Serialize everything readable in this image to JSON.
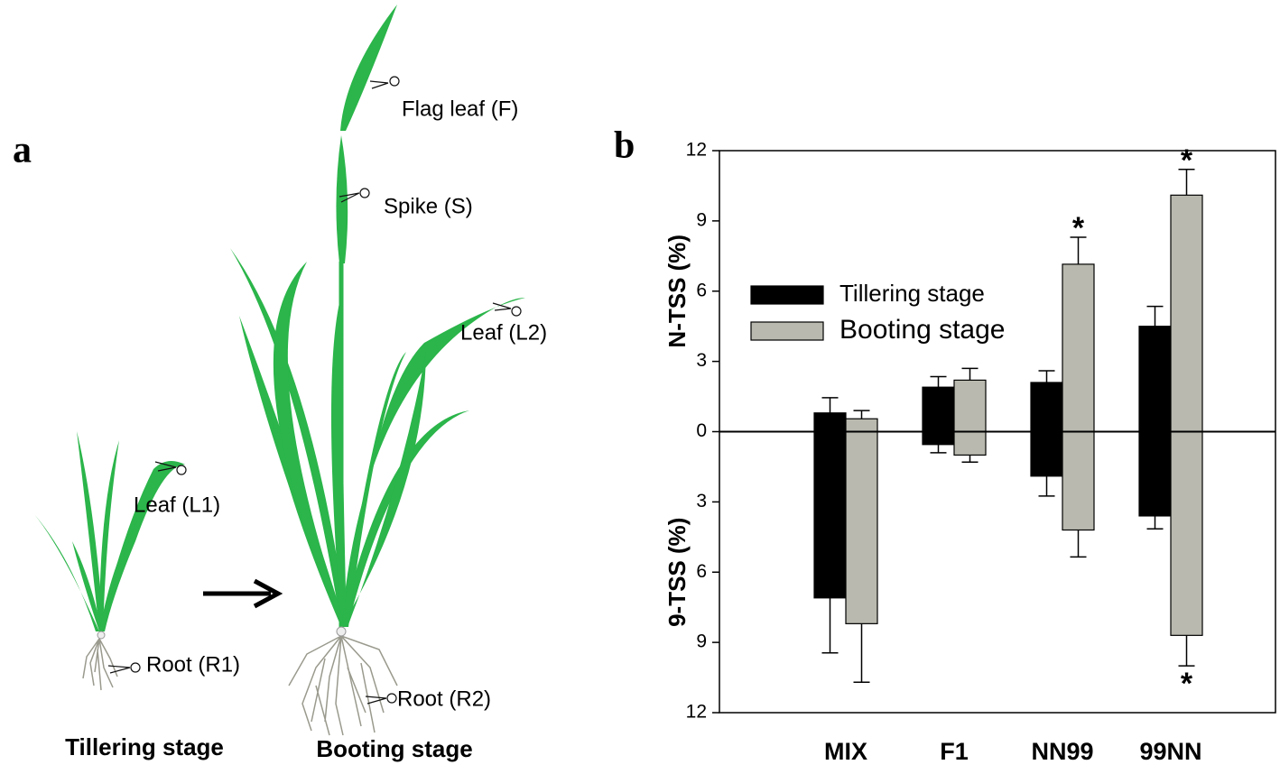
{
  "illustration": {
    "panel": "a",
    "labels": [
      "Flag leaf (F)",
      "Spike (S)",
      "Leaf (L2)",
      "Leaf (L1)",
      "Root (R1)",
      "Root (R2)"
    ],
    "stages": [
      "Tillering stage",
      "Booting stage"
    ]
  },
  "chart_data": {
    "type": "bar",
    "panel": "b",
    "ylabel_top": "N-TSS (%)",
    "ylabel_bottom": "9-TSS (%)",
    "categories": [
      "MIX",
      "F1",
      "NN99",
      "99NN"
    ],
    "ylim": [
      -12,
      12
    ],
    "yticks": [
      12,
      9,
      6,
      3,
      0,
      {
        "value": -3,
        "label": "3"
      },
      {
        "value": -6,
        "label": "6"
      },
      {
        "value": -9,
        "label": "9"
      },
      {
        "value": -12,
        "label": "12"
      }
    ],
    "series": [
      {
        "name": "Tillering stage",
        "color": "#000000",
        "values": [
          0.8,
          1.9,
          2.1,
          4.5
        ],
        "errors": [
          0.65,
          0.45,
          0.5,
          0.85
        ],
        "values_down": [
          -7.1,
          -0.55,
          -1.9,
          -3.6
        ],
        "errors_down": [
          2.35,
          0.35,
          0.85,
          0.55
        ]
      },
      {
        "name": "Booting stage",
        "color": "#b9b9af",
        "values": [
          0.55,
          2.2,
          7.15,
          10.1
        ],
        "errors": [
          0.35,
          0.5,
          1.15,
          1.1
        ],
        "values_down": [
          -8.2,
          -1.0,
          -4.2,
          -8.7
        ],
        "errors_down": [
          2.5,
          0.3,
          1.15,
          1.3
        ],
        "marks_up": [
          null,
          null,
          "*",
          "*"
        ],
        "marks_down": [
          null,
          null,
          null,
          "*"
        ]
      }
    ]
  }
}
